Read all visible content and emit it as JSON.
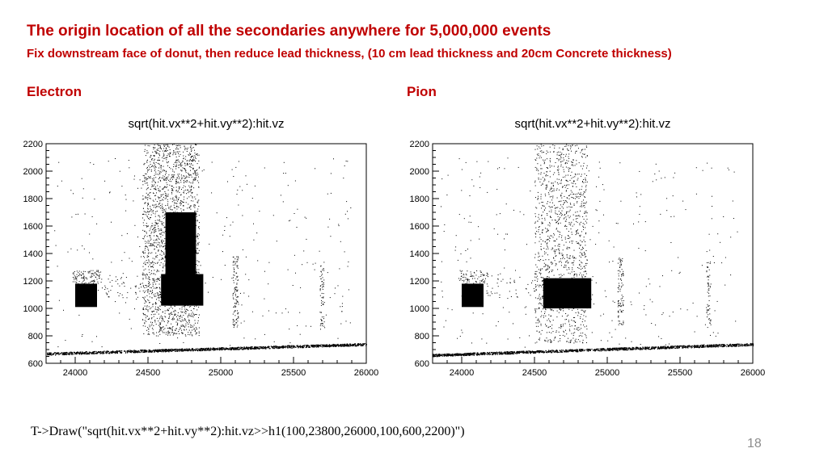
{
  "slide": {
    "title": "The origin location of all the secondaries anywhere for 5,000,000 events",
    "subtitle": "Fix downstream face of donut, then reduce lead thickness, (10 cm lead thickness and 20cm Concrete thickness)",
    "command": "T->Draw(\"sqrt(hit.vx**2+hit.vy**2):hit.vz>>h1(100,23800,26000,100,600,2200)\")",
    "page_number": "18",
    "accent_color": "#c00000"
  },
  "chart_data": [
    {
      "type": "scatter",
      "panel_label": "Electron",
      "title": "sqrt(hit.vx**2+hit.vy**2):hit.vz",
      "xlabel": "",
      "ylabel": "",
      "xlim": [
        23800,
        26000
      ],
      "ylim": [
        600,
        2200
      ],
      "x_ticks": [
        24000,
        24500,
        25000,
        25500,
        26000
      ],
      "y_ticks": [
        600,
        800,
        1000,
        1200,
        1400,
        1600,
        1800,
        2000,
        2200
      ],
      "grid": false,
      "legend": "none",
      "marker_color": "#000000",
      "dense_regions": [
        {
          "name": "block-left",
          "x": [
            24000,
            24150
          ],
          "y": [
            1010,
            1180
          ]
        },
        {
          "name": "block-main",
          "x": [
            24590,
            24880
          ],
          "y": [
            1020,
            1250
          ]
        },
        {
          "name": "slab-upper",
          "x": [
            24620,
            24830
          ],
          "y": [
            1250,
            1700
          ]
        }
      ],
      "scatter_regions": [
        {
          "name": "column",
          "x": [
            24460,
            24850
          ],
          "y": [
            800,
            2200
          ],
          "density": 0.35
        },
        {
          "name": "band-1100",
          "x": [
            24150,
            24600
          ],
          "y": [
            1080,
            1260
          ],
          "density": 0.08
        },
        {
          "name": "left-tips",
          "x": [
            23980,
            24180
          ],
          "y": [
            1180,
            1280
          ],
          "density": 0.5
        },
        {
          "name": "vline-25100",
          "x": [
            25080,
            25120
          ],
          "y": [
            850,
            1380
          ],
          "density": 0.5
        },
        {
          "name": "vline-25700",
          "x": [
            25680,
            25710
          ],
          "y": [
            850,
            1350
          ],
          "density": 0.4
        },
        {
          "name": "background",
          "x": [
            23850,
            25900
          ],
          "y": [
            720,
            2100
          ],
          "density": 0.01
        }
      ],
      "diagonal_band": {
        "x": [
          23800,
          26000
        ],
        "y_start": 670,
        "y_end": 740
      }
    },
    {
      "type": "scatter",
      "panel_label": "Pion",
      "title": "sqrt(hit.vx**2+hit.vy**2):hit.vz",
      "xlabel": "",
      "ylabel": "",
      "xlim": [
        23800,
        26000
      ],
      "ylim": [
        600,
        2200
      ],
      "x_ticks": [
        24000,
        24500,
        25000,
        25500,
        26000
      ],
      "y_ticks": [
        600,
        800,
        1000,
        1200,
        1400,
        1600,
        1800,
        2000,
        2200
      ],
      "grid": false,
      "legend": "none",
      "marker_color": "#000000",
      "dense_regions": [
        {
          "name": "block-left",
          "x": [
            24000,
            24150
          ],
          "y": [
            1010,
            1180
          ]
        },
        {
          "name": "block-main",
          "x": [
            24560,
            24890
          ],
          "y": [
            1000,
            1220
          ]
        }
      ],
      "scatter_regions": [
        {
          "name": "column",
          "x": [
            24500,
            24860
          ],
          "y": [
            750,
            2200
          ],
          "density": 0.22
        },
        {
          "name": "band-1100",
          "x": [
            24150,
            24560
          ],
          "y": [
            1080,
            1260
          ],
          "density": 0.06
        },
        {
          "name": "left-tips",
          "x": [
            23980,
            24180
          ],
          "y": [
            1180,
            1280
          ],
          "density": 0.35
        },
        {
          "name": "vline-25100",
          "x": [
            25070,
            25110
          ],
          "y": [
            880,
            1370
          ],
          "density": 0.45
        },
        {
          "name": "vline-25700",
          "x": [
            25680,
            25710
          ],
          "y": [
            880,
            1370
          ],
          "density": 0.35
        },
        {
          "name": "background",
          "x": [
            23850,
            25900
          ],
          "y": [
            720,
            2100
          ],
          "density": 0.01
        }
      ],
      "diagonal_band": {
        "x": [
          23800,
          26000
        ],
        "y_start": 660,
        "y_end": 740
      }
    }
  ]
}
